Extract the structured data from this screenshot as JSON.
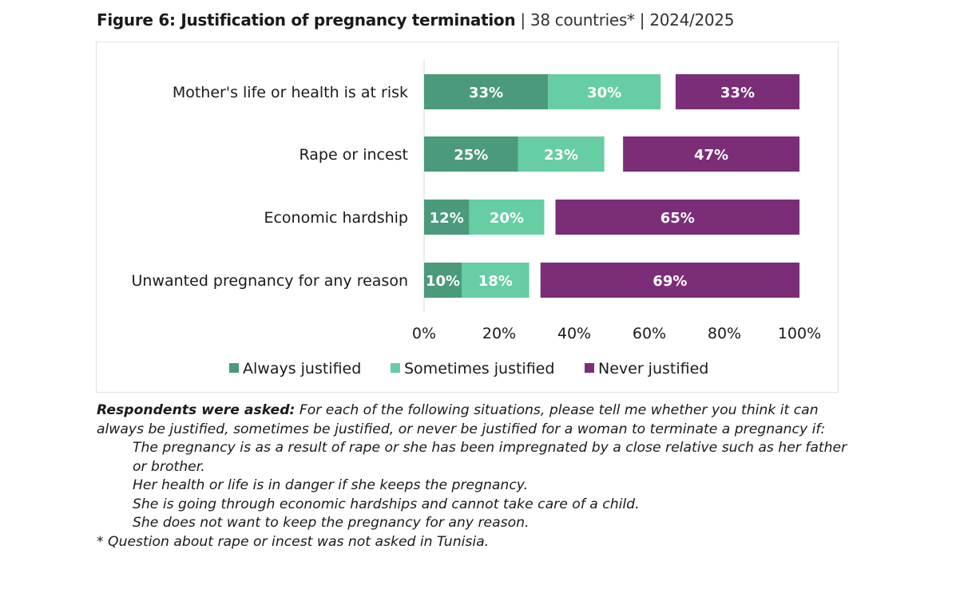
{
  "header": {
    "title_bold": "Figure 6: Justification of pregnancy termination",
    "separator": "|",
    "countries": "38 countries*",
    "period": "2024/2025"
  },
  "chart_data": {
    "type": "bar",
    "orientation": "horizontal",
    "stacked": true,
    "categories": [
      "Mother's life or health is at risk",
      "Rape or incest",
      "Economic hardship",
      "Unwanted pregnancy for any reason"
    ],
    "series": [
      {
        "name": "Always justified",
        "color": "#4a9a7b",
        "values": [
          33,
          25,
          12,
          10
        ],
        "labels": [
          "33%",
          "25%",
          "12%",
          "10%"
        ],
        "anchor": "left"
      },
      {
        "name": "Sometimes justified",
        "color": "#66cda4",
        "values": [
          30,
          23,
          20,
          18
        ],
        "labels": [
          "30%",
          "23%",
          "20%",
          "18%"
        ],
        "anchor": "left"
      },
      {
        "name": "Never justified",
        "color": "#7b2d77",
        "values": [
          33,
          47,
          65,
          69
        ],
        "labels": [
          "33%",
          "47%",
          "65%",
          "69%"
        ],
        "anchor": "right"
      }
    ],
    "xlim": [
      0,
      100
    ],
    "xticks": [
      "0%",
      "20%",
      "40%",
      "60%",
      "80%",
      "100%"
    ],
    "xtick_values": [
      0,
      20,
      40,
      60,
      80,
      100
    ],
    "legend_position": "bottom",
    "grid": false
  },
  "notes": {
    "lead": "Respondents were asked:",
    "question": " For each of the following situations, please tell me whether you think it can always be justified, sometimes be justified, or never be justified for a woman to terminate a pregnancy if:",
    "items": [
      "The pregnancy is as a result of rape or she has been impregnated by a close relative such as her father or brother.",
      "Her health or life is in danger if she keeps the pregnancy.",
      "She is going through economic hardships and cannot take care of a child.",
      "She does not want to keep the pregnancy for any reason."
    ],
    "footnote": "* Question about rape or incest was not asked in Tunisia."
  }
}
